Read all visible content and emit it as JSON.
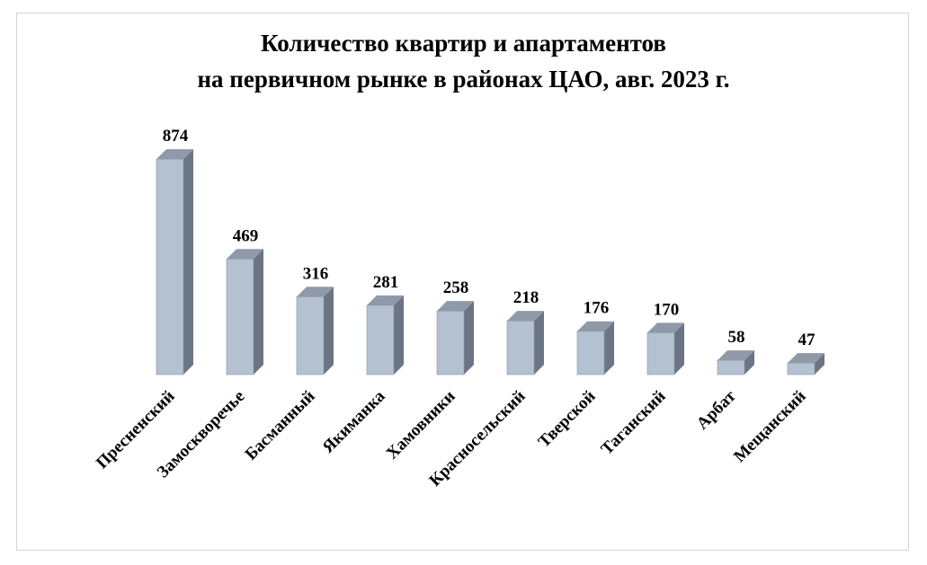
{
  "chart_data": {
    "type": "bar",
    "title_line1": "Количество квартир и апартаментов",
    "title_line2": "на первичном рынке в районах ЦАО, авг. 2023 г.",
    "categories": [
      "Пресненский",
      "Замоскворечье",
      "Басманный",
      "Якиманка",
      "Хамовники",
      "Красносельский",
      "Тверской",
      "Таганский",
      "Арбат",
      "Мещанский"
    ],
    "values": [
      874,
      469,
      316,
      281,
      258,
      218,
      176,
      170,
      58,
      47
    ],
    "ylim": [
      0,
      900
    ],
    "grid": false,
    "legend": "none",
    "colors": {
      "front": "#b4c1d1",
      "side": "#6b7585",
      "top": "#8f99a8",
      "edge": "#8a94a2"
    }
  }
}
